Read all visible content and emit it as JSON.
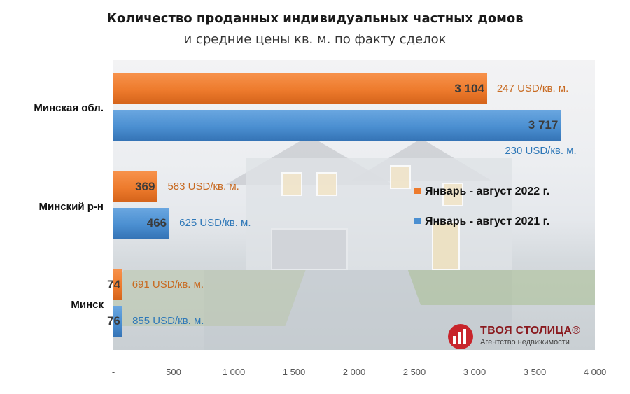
{
  "colors": {
    "series_2022": "#ed7a2c",
    "series_2021": "#4b8fd1"
  },
  "logo": {
    "name": "ТВОЯ СТОЛИЦА®",
    "tagline": "Агентство недвижимости"
  },
  "chart_data": {
    "type": "bar",
    "orientation": "horizontal",
    "title": "Количество проданных индивидуальных частных домов",
    "subtitle": "и средние цены кв. м. по факту сделок",
    "categories": [
      "Минская обл.",
      "Минский р-н",
      "Минск"
    ],
    "series": [
      {
        "name": "Январь - август 2022 г.",
        "values": [
          3104,
          369,
          74
        ],
        "value_labels": [
          "3 104",
          "369",
          "74"
        ],
        "price_labels": [
          "247 USD/кв. м.",
          "583 USD/кв. м.",
          "691 USD/кв. м."
        ]
      },
      {
        "name": "Январь - август 2021 г.",
        "values": [
          3717,
          466,
          76
        ],
        "value_labels": [
          "3 717",
          "466",
          "76"
        ],
        "price_labels": [
          "230 USD/кв. м.",
          "625 USD/кв. м.",
          "855 USD/кв. м."
        ]
      }
    ],
    "xlim": [
      0,
      4000
    ],
    "x_ticks": [
      "-",
      "500",
      "1 000",
      "1 500",
      "2 000",
      "2 500",
      "3 000",
      "3 500",
      "4 000"
    ],
    "legend_position": "right",
    "grid": false
  }
}
